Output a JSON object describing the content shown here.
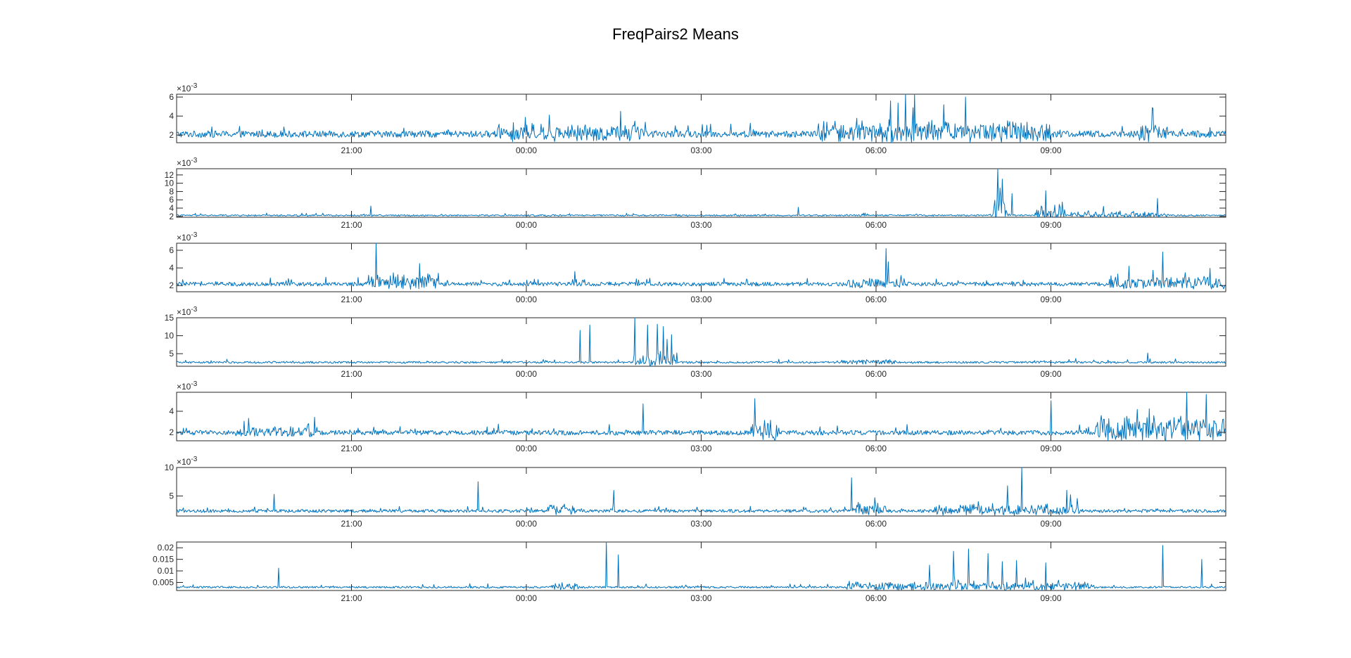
{
  "figure_title": "FreqPairs2 Means",
  "line_color": "#0072BD",
  "chart_data": [
    {
      "type": "line",
      "x_range": [
        "18:00",
        "12:00"
      ],
      "x_tick_labels": [
        "21:00",
        "00:00",
        "03:00",
        "06:00",
        "09:00"
      ],
      "y_exponent_label": "×10-3",
      "y_tick_values": [
        2,
        4,
        6
      ],
      "y_tick_labels": [
        "2",
        "4",
        "6"
      ],
      "ylim": [
        1.2,
        6.3
      ],
      "baseline": 2.0,
      "noise": 0.7,
      "bursts": [
        {
          "start": "23:30",
          "end": "02:00",
          "amp": 0.9
        },
        {
          "start": "05:00",
          "end": "09:00",
          "amp": 1.3
        },
        {
          "start": "10:30",
          "end": "11:00",
          "amp": 1.0
        }
      ],
      "spikes": [
        {
          "t": "06:30",
          "v": 6.3
        },
        {
          "t": "06:40",
          "v": 6.3
        },
        {
          "t": "06:15",
          "v": 5.6
        },
        {
          "t": "07:10",
          "v": 5.2
        },
        {
          "t": "10:45",
          "v": 4.8
        }
      ]
    },
    {
      "type": "line",
      "x_range": [
        "18:00",
        "12:00"
      ],
      "x_tick_labels": [
        "21:00",
        "00:00",
        "03:00",
        "06:00",
        "09:00"
      ],
      "y_exponent_label": "×10-3",
      "y_tick_values": [
        2,
        4,
        6,
        8,
        10,
        12
      ],
      "y_tick_labels": [
        "2",
        "4",
        "6",
        "8",
        "10",
        "12"
      ],
      "ylim": [
        1.8,
        13.5
      ],
      "baseline": 2.2,
      "noise": 0.35,
      "bursts": [
        {
          "start": "08:00",
          "end": "08:15",
          "amp": 5.0
        },
        {
          "start": "08:45",
          "end": "09:15",
          "amp": 3.0
        },
        {
          "start": "09:20",
          "end": "11:00",
          "amp": 1.2
        }
      ],
      "spikes": [
        {
          "t": "08:05",
          "v": 13.5
        },
        {
          "t": "08:10",
          "v": 11.0
        },
        {
          "t": "08:20",
          "v": 7.5
        },
        {
          "t": "08:55",
          "v": 8.2
        },
        {
          "t": "21:20",
          "v": 4.5
        },
        {
          "t": "04:40",
          "v": 4.2
        }
      ]
    },
    {
      "type": "line",
      "x_range": [
        "18:00",
        "12:00"
      ],
      "x_tick_labels": [
        "21:00",
        "00:00",
        "03:00",
        "06:00",
        "09:00"
      ],
      "y_exponent_label": "×10-3",
      "y_tick_values": [
        2,
        4,
        6
      ],
      "y_tick_labels": [
        "2",
        "4",
        "6"
      ],
      "ylim": [
        1.3,
        6.8
      ],
      "baseline": 2.1,
      "noise": 0.45,
      "bursts": [
        {
          "start": "21:15",
          "end": "22:30",
          "amp": 1.2
        },
        {
          "start": "05:30",
          "end": "06:30",
          "amp": 0.6
        },
        {
          "start": "10:00",
          "end": "12:00",
          "amp": 0.7
        }
      ],
      "spikes": [
        {
          "t": "21:25",
          "v": 6.8
        },
        {
          "t": "22:10",
          "v": 4.5
        },
        {
          "t": "06:10",
          "v": 6.2
        },
        {
          "t": "10:55",
          "v": 5.8
        },
        {
          "t": "00:50",
          "v": 3.6
        }
      ]
    },
    {
      "type": "line",
      "x_range": [
        "18:00",
        "12:00"
      ],
      "x_tick_labels": [
        "21:00",
        "00:00",
        "03:00",
        "06:00",
        "09:00"
      ],
      "y_exponent_label": "×10-3",
      "y_tick_values": [
        5,
        10,
        15
      ],
      "y_tick_labels": [
        "5",
        "10",
        "15"
      ],
      "ylim": [
        1.5,
        15
      ],
      "baseline": 2.5,
      "noise": 0.55,
      "bursts": [
        {
          "start": "01:50",
          "end": "02:35",
          "amp": 3.0
        },
        {
          "start": "05:20",
          "end": "06:20",
          "amp": 0.6
        }
      ],
      "spikes": [
        {
          "t": "00:55",
          "v": 11.5
        },
        {
          "t": "01:05",
          "v": 13.0
        },
        {
          "t": "01:52",
          "v": 15.0
        },
        {
          "t": "02:05",
          "v": 13.0
        },
        {
          "t": "02:15",
          "v": 13.2
        },
        {
          "t": "02:25",
          "v": 9.0
        },
        {
          "t": "10:40",
          "v": 5.2
        }
      ]
    },
    {
      "type": "line",
      "x_range": [
        "18:00",
        "12:00"
      ],
      "x_tick_labels": [
        "21:00",
        "00:00",
        "03:00",
        "06:00",
        "09:00"
      ],
      "y_exponent_label": "×10-3",
      "y_tick_values": [
        2,
        4
      ],
      "y_tick_labels": [
        "2",
        "4"
      ],
      "ylim": [
        1.2,
        5.8
      ],
      "baseline": 1.9,
      "noise": 0.45,
      "bursts": [
        {
          "start": "19:00",
          "end": "20:30",
          "amp": 0.4
        },
        {
          "start": "03:50",
          "end": "04:20",
          "amp": 1.3
        },
        {
          "start": "09:45",
          "end": "12:00",
          "amp": 1.6
        }
      ],
      "spikes": [
        {
          "t": "02:00",
          "v": 4.7
        },
        {
          "t": "03:55",
          "v": 5.2
        },
        {
          "t": "09:00",
          "v": 5.0
        },
        {
          "t": "11:20",
          "v": 5.8
        },
        {
          "t": "11:40",
          "v": 5.6
        }
      ]
    },
    {
      "type": "line",
      "x_range": [
        "18:00",
        "12:00"
      ],
      "x_tick_labels": [
        "21:00",
        "00:00",
        "03:00",
        "06:00",
        "09:00"
      ],
      "y_exponent_label": "×10-3",
      "y_tick_values": [
        5,
        10
      ],
      "y_tick_labels": [
        "5",
        "10"
      ],
      "ylim": [
        1.5,
        10
      ],
      "baseline": 2.3,
      "noise": 0.55,
      "bursts": [
        {
          "start": "00:20",
          "end": "00:50",
          "amp": 1.0
        },
        {
          "start": "05:35",
          "end": "06:10",
          "amp": 1.2
        },
        {
          "start": "07:00",
          "end": "09:30",
          "amp": 1.1
        }
      ],
      "spikes": [
        {
          "t": "19:40",
          "v": 5.3
        },
        {
          "t": "23:10",
          "v": 7.5
        },
        {
          "t": "01:30",
          "v": 6.0
        },
        {
          "t": "05:35",
          "v": 8.2
        },
        {
          "t": "08:30",
          "v": 10.0
        },
        {
          "t": "08:15",
          "v": 6.8
        }
      ]
    },
    {
      "type": "line",
      "x_range": [
        "18:00",
        "12:00"
      ],
      "x_tick_labels": [
        "21:00",
        "00:00",
        "03:00",
        "06:00",
        "09:00"
      ],
      "y_exponent_label": "",
      "y_tick_values": [
        0.005,
        0.01,
        0.015,
        0.02
      ],
      "y_tick_labels": [
        "0.005",
        "0.01",
        "0.015",
        "0.02"
      ],
      "ylim": [
        0.0015,
        0.0225
      ],
      "baseline": 0.0028,
      "noise": 0.0008,
      "bursts": [
        {
          "start": "00:25",
          "end": "00:55",
          "amp": 0.002
        },
        {
          "start": "05:30",
          "end": "09:45",
          "amp": 0.0025
        }
      ],
      "spikes": [
        {
          "t": "19:45",
          "v": 0.0112
        },
        {
          "t": "01:22",
          "v": 0.0225
        },
        {
          "t": "01:35",
          "v": 0.017
        },
        {
          "t": "06:55",
          "v": 0.0125
        },
        {
          "t": "07:20",
          "v": 0.0185
        },
        {
          "t": "07:35",
          "v": 0.0195
        },
        {
          "t": "07:55",
          "v": 0.0175
        },
        {
          "t": "08:10",
          "v": 0.014
        },
        {
          "t": "08:25",
          "v": 0.0145
        },
        {
          "t": "08:55",
          "v": 0.0135
        },
        {
          "t": "10:55",
          "v": 0.021
        },
        {
          "t": "11:35",
          "v": 0.015
        }
      ]
    }
  ]
}
